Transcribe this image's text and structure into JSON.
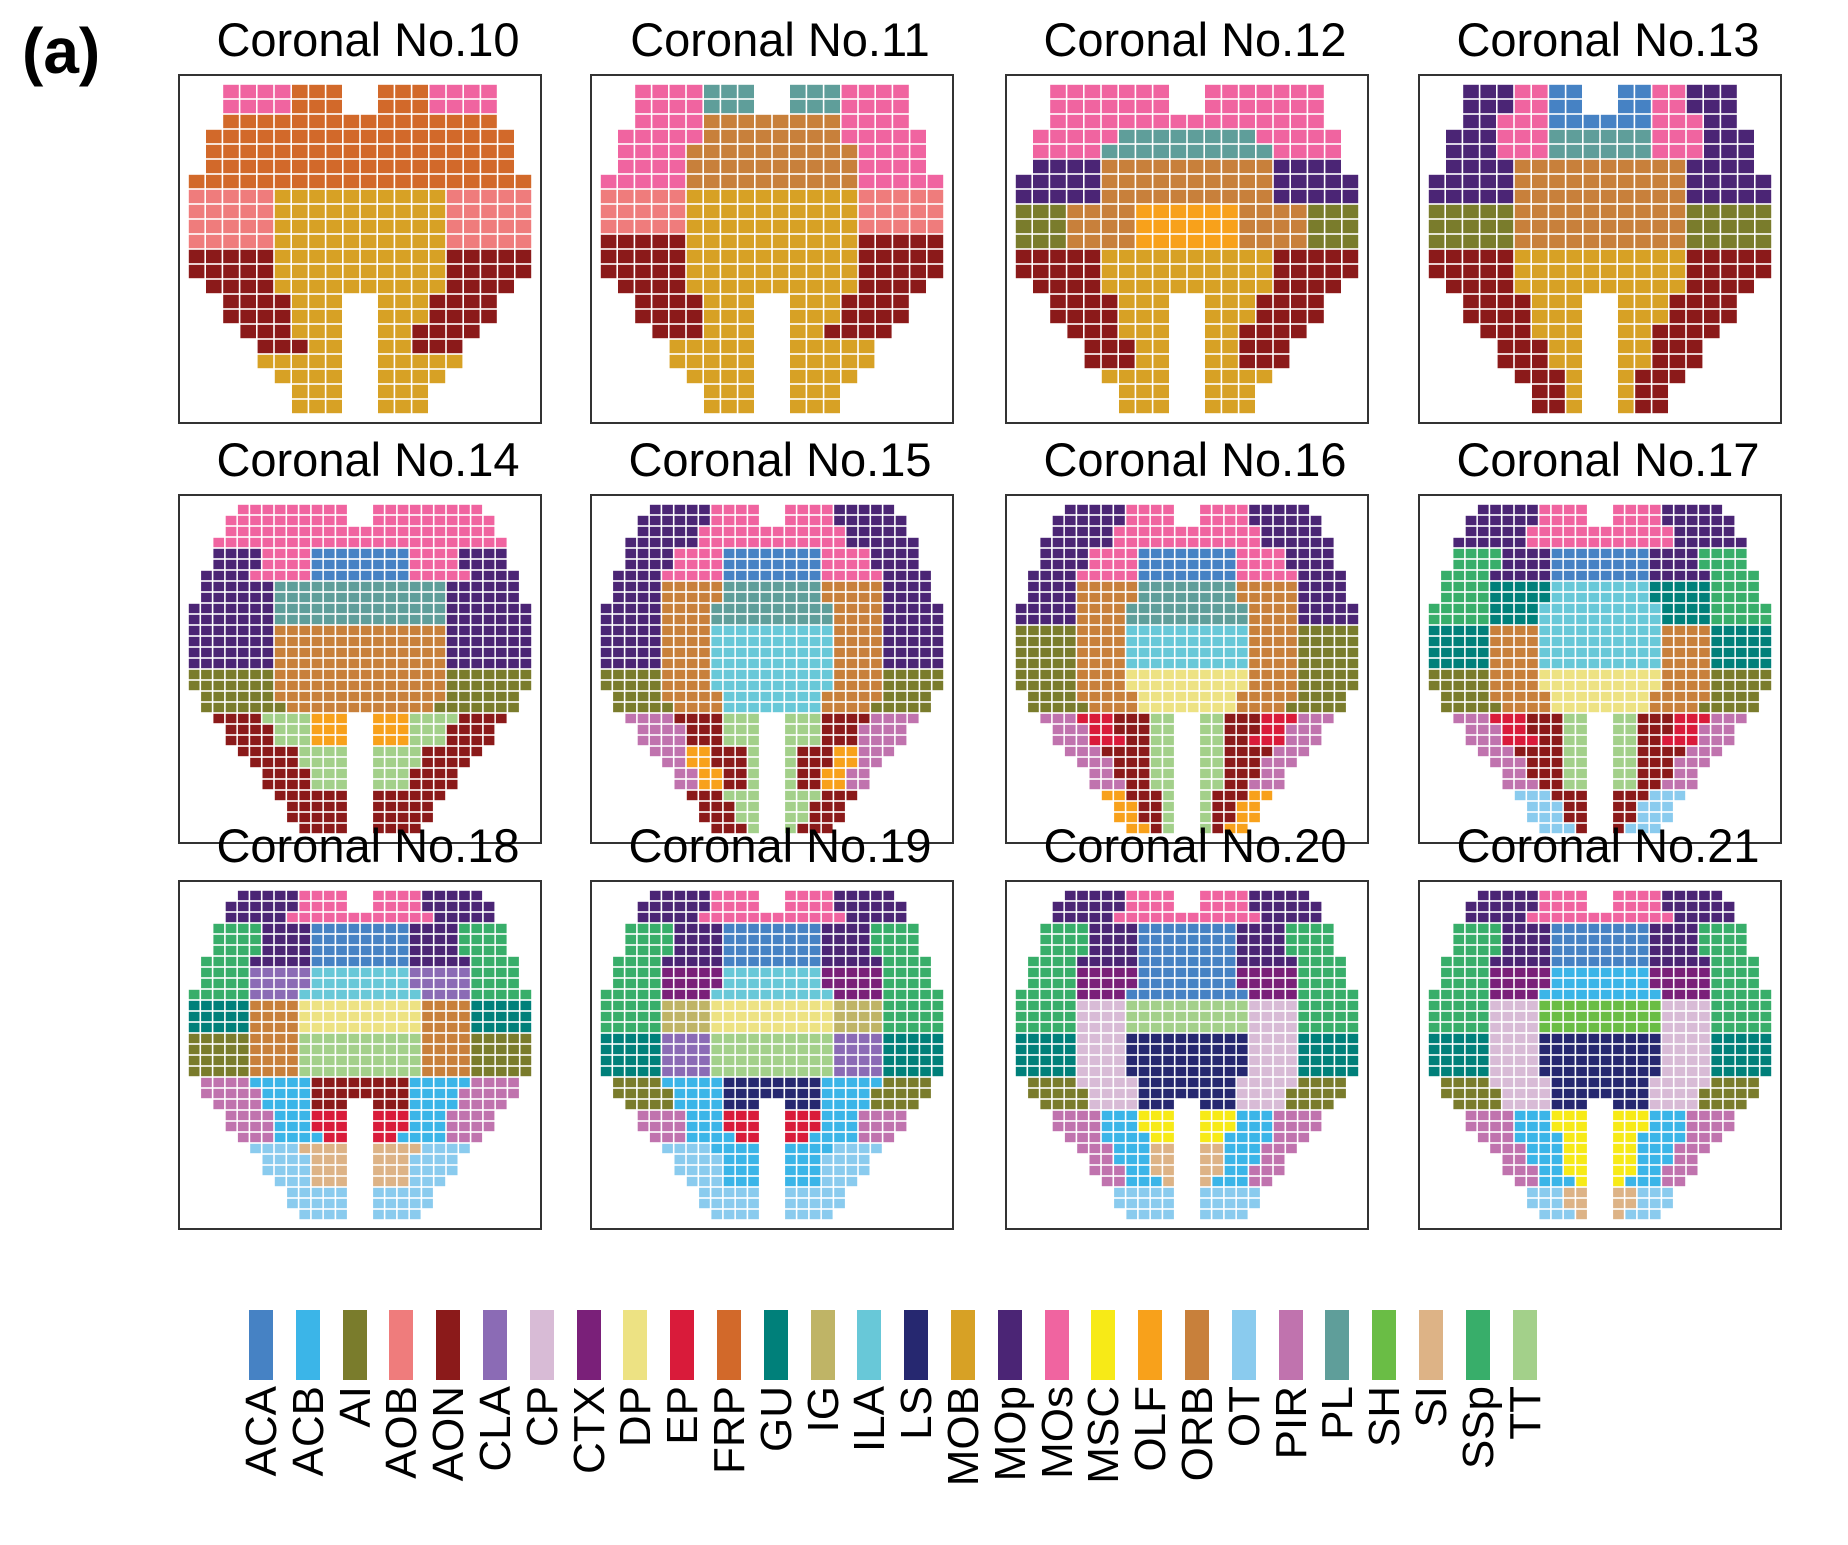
{
  "figure": {
    "label": "(a)",
    "title_prefix": "Coronal No."
  },
  "panels": [
    {
      "title": "Coronal No.10",
      "bands": [
        [
          "MOs",
          "FRP"
        ],
        [
          "FRP"
        ],
        [
          "FRP"
        ],
        [
          "AOB",
          "MOB"
        ],
        [
          "AOB",
          "MOB"
        ],
        [
          "AON",
          "MOB"
        ],
        [
          "AON",
          "MOB"
        ],
        [
          "AON",
          "MOB"
        ],
        [
          "MOB"
        ],
        [
          "MOB"
        ]
      ]
    },
    {
      "title": "Coronal No.11",
      "bands": [
        [
          "MOs",
          "PL"
        ],
        [
          "MOs",
          "ORB"
        ],
        [
          "MOs",
          "ORB"
        ],
        [
          "AOB",
          "MOB"
        ],
        [
          "AON",
          "MOB"
        ],
        [
          "AON",
          "MOB"
        ],
        [
          "AON",
          "MOB"
        ],
        [
          "MOB"
        ],
        [
          "MOB"
        ]
      ]
    },
    {
      "title": "Coronal No.12",
      "bands": [
        [
          "MOs"
        ],
        [
          "MOs",
          "PL"
        ],
        [
          "MOp",
          "ORB"
        ],
        [
          "AI",
          "ORB",
          "OLF"
        ],
        [
          "AON",
          "MOB"
        ],
        [
          "AON",
          "MOB"
        ],
        [
          "AON",
          "MOB"
        ],
        [
          "MOB"
        ]
      ]
    },
    {
      "title": "Coronal No.13",
      "bands": [
        [
          "MOp",
          "MOs",
          "ACA"
        ],
        [
          "MOp",
          "MOs",
          "PL"
        ],
        [
          "MOp",
          "ORB"
        ],
        [
          "AI",
          "ORB"
        ],
        [
          "AON",
          "MOB"
        ],
        [
          "AON",
          "MOB"
        ],
        [
          "AON",
          "MOB"
        ],
        [
          "AON",
          "MOB"
        ]
      ]
    },
    {
      "title": "Coronal No.14",
      "bands": [
        [
          "MOs"
        ],
        [
          "MOp",
          "MOs",
          "ACA"
        ],
        [
          "MOp",
          "PL"
        ],
        [
          "MOp",
          "ORB"
        ],
        [
          "AI",
          "ORB"
        ],
        [
          "AON",
          "TT",
          "OLF"
        ],
        [
          "AON",
          "TT"
        ],
        [
          "AON"
        ]
      ]
    },
    {
      "title": "Coronal No.15",
      "bands": [
        [
          "MOp",
          "MOs"
        ],
        [
          "MOp",
          "MOs",
          "ACA"
        ],
        [
          "MOp",
          "ORB",
          "PL"
        ],
        [
          "MOp",
          "ORB",
          "ILA"
        ],
        [
          "AI",
          "ORB",
          "ILA"
        ],
        [
          "PIR",
          "AON",
          "TT"
        ],
        [
          "PIR",
          "OLF",
          "AON",
          "TT"
        ],
        [
          "AON",
          "TT"
        ]
      ]
    },
    {
      "title": "Coronal No.16",
      "bands": [
        [
          "MOp",
          "MOs"
        ],
        [
          "MOp",
          "MOs",
          "ACA"
        ],
        [
          "MOp",
          "ORB",
          "PL"
        ],
        [
          "AI",
          "ORB",
          "ILA"
        ],
        [
          "AI",
          "ORB",
          "DP"
        ],
        [
          "PIR",
          "EP",
          "AON",
          "TT"
        ],
        [
          "PIR",
          "AON",
          "TT"
        ],
        [
          "OLF",
          "AON",
          "TT"
        ]
      ]
    },
    {
      "title": "Coronal No.17",
      "bands": [
        [
          "MOp",
          "MOs"
        ],
        [
          "SSp",
          "MOp",
          "ACA"
        ],
        [
          "SSp",
          "GU",
          "ILA"
        ],
        [
          "GU",
          "ORB",
          "ILA"
        ],
        [
          "AI",
          "ORB",
          "DP"
        ],
        [
          "PIR",
          "EP",
          "AON",
          "TT"
        ],
        [
          "PIR",
          "AON",
          "TT"
        ],
        [
          "OT",
          "AON"
        ]
      ]
    },
    {
      "title": "Coronal No.18",
      "bands": [
        [
          "MOp",
          "MOs"
        ],
        [
          "SSp",
          "MOp",
          "ACA"
        ],
        [
          "SSp",
          "CLA",
          "ILA"
        ],
        [
          "GU",
          "ORB",
          "DP"
        ],
        [
          "AI",
          "ORB",
          "TT"
        ],
        [
          "PIR",
          "ACB",
          "AON"
        ],
        [
          "PIR",
          "ACB",
          "EP"
        ],
        [
          "OT",
          "SI"
        ],
        [
          "OT"
        ]
      ]
    },
    {
      "title": "Coronal No.19",
      "bands": [
        [
          "MOp",
          "MOs"
        ],
        [
          "SSp",
          "MOp",
          "ACA"
        ],
        [
          "SSp",
          "CTX",
          "ILA"
        ],
        [
          "SSp",
          "IG",
          "DP"
        ],
        [
          "GU",
          "CLA",
          "TT"
        ],
        [
          "AI",
          "ACB",
          "LS"
        ],
        [
          "PIR",
          "ACB",
          "EP"
        ],
        [
          "OT",
          "ACB"
        ],
        [
          "OT"
        ]
      ]
    },
    {
      "title": "Coronal No.20",
      "bands": [
        [
          "MOp",
          "MOs"
        ],
        [
          "SSp",
          "MOp",
          "ACA"
        ],
        [
          "SSp",
          "CTX",
          "ACA"
        ],
        [
          "SSp",
          "CP",
          "TT"
        ],
        [
          "GU",
          "CP",
          "LS"
        ],
        [
          "AI",
          "CP",
          "LS"
        ],
        [
          "PIR",
          "ACB",
          "MSC"
        ],
        [
          "PIR",
          "ACB",
          "SI"
        ],
        [
          "OT"
        ]
      ]
    },
    {
      "title": "Coronal No.21",
      "bands": [
        [
          "MOp",
          "MOs"
        ],
        [
          "SSp",
          "MOp",
          "ACA"
        ],
        [
          "SSp",
          "CTX",
          "ACB"
        ],
        [
          "SSp",
          "CP",
          "SH"
        ],
        [
          "GU",
          "CP",
          "LS"
        ],
        [
          "AI",
          "CP",
          "LS"
        ],
        [
          "PIR",
          "ACB",
          "MSC"
        ],
        [
          "PIR",
          "ACB",
          "MSC"
        ],
        [
          "OT",
          "SI"
        ]
      ]
    }
  ],
  "legend": [
    {
      "label": "ACA",
      "color": "#4682C4"
    },
    {
      "label": "ACB",
      "color": "#3BB5E8"
    },
    {
      "label": "AI",
      "color": "#7A7C2C"
    },
    {
      "label": "AOB",
      "color": "#EF7C7C"
    },
    {
      "label": "AON",
      "color": "#8B1A1A"
    },
    {
      "label": "CLA",
      "color": "#8B6BB5"
    },
    {
      "label": "CP",
      "color": "#D8BBD6"
    },
    {
      "label": "CTX",
      "color": "#7A2079"
    },
    {
      "label": "DP",
      "color": "#EDE283"
    },
    {
      "label": "EP",
      "color": "#D91B3A"
    },
    {
      "label": "FRP",
      "color": "#D2692A"
    },
    {
      "label": "GU",
      "color": "#00807A"
    },
    {
      "label": "IG",
      "color": "#BFB466"
    },
    {
      "label": "ILA",
      "color": "#68C8D8"
    },
    {
      "label": "LS",
      "color": "#262870"
    },
    {
      "label": "MOB",
      "color": "#D7A125"
    },
    {
      "label": "MOp",
      "color": "#4B2575"
    },
    {
      "label": "MOs",
      "color": "#F064A0"
    },
    {
      "label": "MSC",
      "color": "#F7EA17"
    },
    {
      "label": "OLF",
      "color": "#F8A11B"
    },
    {
      "label": "ORB",
      "color": "#C8803B"
    },
    {
      "label": "OT",
      "color": "#8ACBEE"
    },
    {
      "label": "PIR",
      "color": "#C073AE"
    },
    {
      "label": "PL",
      "color": "#5F9E9A"
    },
    {
      "label": "SH",
      "color": "#6ABD45"
    },
    {
      "label": "SI",
      "color": "#DDB386"
    },
    {
      "label": "SSp",
      "color": "#38AE6A"
    },
    {
      "label": "TT",
      "color": "#A3D08A"
    }
  ]
}
